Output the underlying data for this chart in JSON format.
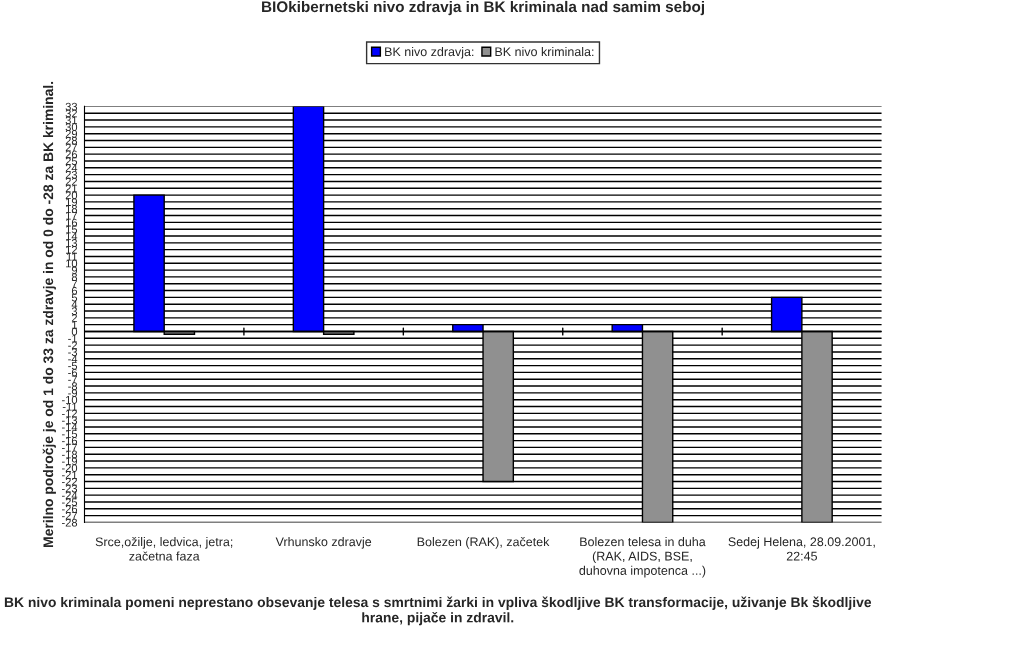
{
  "chart_data": {
    "type": "bar",
    "title": "BIOkibernetski nivo zdravja in BK kriminala nad samim seboj",
    "ylabel": "Merilno področje je od 1 do 33 za zdravje in od 0 do -28 za BK kriminal.",
    "annotations": [
      "BK nivo kriminala pomeni neprestano obsevanje telesa s smrtnimi žarki in vpliva škodljive BK transformacije, uživanje Bk škodljive hrane, pijače in zdravil."
    ],
    "categories": [
      "Srce,ožilje, ledvica, jetra;\nzačetna faza",
      "Vrhunsko zdravje",
      "Bolezen (RAK), začetek",
      "Bolezen telesa in duha\n(RAK, AIDS, BSE,\nduhovna impotenca ...)",
      "Sedej Helena, 28.09.2001,\n22:45"
    ],
    "series": [
      {
        "name": "BK nivo zdravja:",
        "color": "#0000ff",
        "values": [
          20,
          33,
          1,
          1,
          5
        ]
      },
      {
        "name": "BK nivo kriminala:",
        "color": "#909090",
        "values": [
          -0.4,
          -0.4,
          -22,
          -28,
          -28
        ]
      }
    ],
    "ylim": [
      -28,
      33
    ],
    "yticks": [
      -28,
      -27,
      -26,
      -25,
      -24,
      -23,
      -22,
      -21,
      -20,
      -19,
      -18,
      -17,
      -16,
      -15,
      -14,
      -13,
      -12,
      -11,
      -10,
      -9,
      -8,
      -7,
      -6,
      -5,
      -4,
      -3,
      -2,
      -1,
      0,
      1,
      2,
      3,
      4,
      5,
      6,
      7,
      8,
      9,
      10,
      11,
      12,
      13,
      14,
      15,
      16,
      17,
      18,
      19,
      20,
      21,
      22,
      23,
      24,
      25,
      26,
      27,
      28,
      29,
      30,
      31,
      32,
      33
    ],
    "grid": "y",
    "legend": "top"
  }
}
